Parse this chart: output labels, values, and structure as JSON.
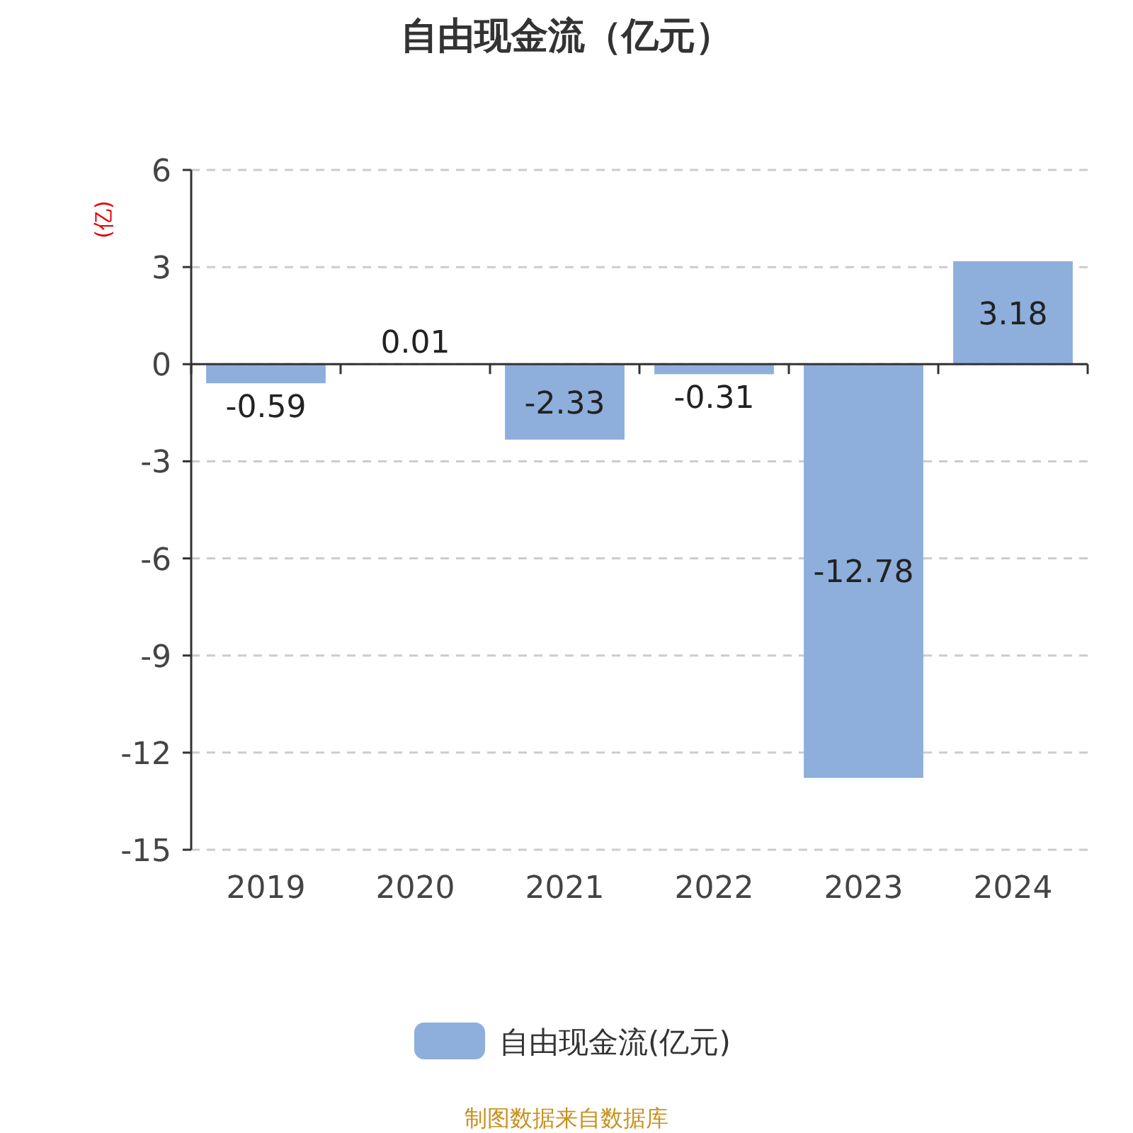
{
  "chart_data": {
    "type": "bar",
    "title": "自由现金流（亿元）",
    "ylabel": "(亿)",
    "categories": [
      "2019",
      "2020",
      "2021",
      "2022",
      "2023",
      "2024"
    ],
    "series": [
      {
        "name": "自由现金流(亿元)",
        "color": "#8eaedb",
        "values": [
          -0.59,
          0.01,
          -2.33,
          -0.31,
          -12.78,
          3.18
        ]
      }
    ],
    "ylim": [
      -15,
      6
    ],
    "yticks": [
      -15,
      -12,
      -9,
      -6,
      -3,
      0,
      3,
      6
    ],
    "grid": "y",
    "legend": "bottom",
    "data_labels": true,
    "annotations": [
      "制图数据来自数据库"
    ]
  }
}
